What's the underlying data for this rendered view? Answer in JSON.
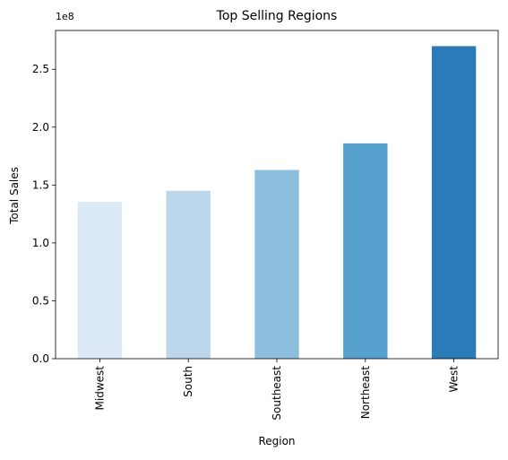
{
  "chart_data": {
    "type": "bar",
    "title": "Top Selling Regions",
    "xlabel": "Region",
    "ylabel": "Total Sales",
    "offset_label": "1e8",
    "categories": [
      "Midwest",
      "South",
      "Southeast",
      "Northeast",
      "West"
    ],
    "values": [
      135500000,
      145000000,
      163000000,
      186000000,
      270000000
    ],
    "colors": [
      "#dbe9f6",
      "#bcd7eb",
      "#8cbfdd",
      "#56a0ce",
      "#2c7bb9"
    ],
    "ylim": [
      0,
      283500000
    ],
    "yticks": [
      0,
      50000000,
      100000000,
      150000000,
      200000000,
      250000000
    ],
    "ytick_labels": [
      "0.0",
      "0.5",
      "1.0",
      "1.5",
      "2.0",
      "2.5"
    ],
    "grid": false,
    "legend": "none"
  }
}
